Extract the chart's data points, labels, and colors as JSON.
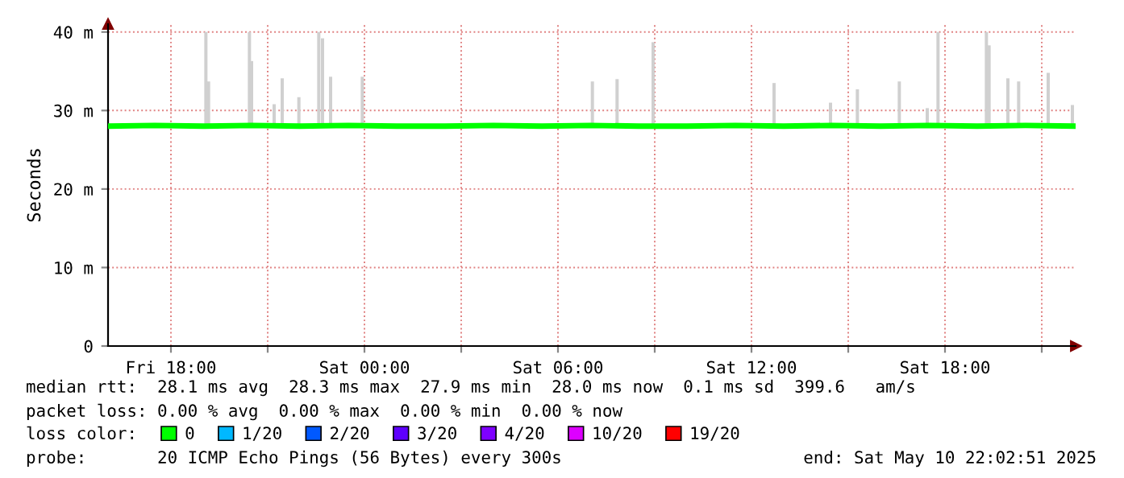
{
  "chart_data": {
    "type": "line",
    "ylabel": "Seconds",
    "xlim": [
      "2025-05-09T16:03",
      "2025-05-10T22:03"
    ],
    "xticks": [
      {
        "value": "2025-05-09T18:00",
        "label": "Fri 18:00"
      },
      {
        "value": "2025-05-09T21:00",
        "label": null
      },
      {
        "value": "2025-05-10T00:00",
        "label": "Sat 00:00"
      },
      {
        "value": "2025-05-10T03:00",
        "label": null
      },
      {
        "value": "2025-05-10T06:00",
        "label": "Sat 06:00"
      },
      {
        "value": "2025-05-10T09:00",
        "label": null
      },
      {
        "value": "2025-05-10T12:00",
        "label": "Sat 12:00"
      },
      {
        "value": "2025-05-10T15:00",
        "label": null
      },
      {
        "value": "2025-05-10T18:00",
        "label": "Sat 18:00"
      },
      {
        "value": "2025-05-10T21:00",
        "label": null
      }
    ],
    "ylim": [
      0,
      41
    ],
    "yticks": [
      0,
      {
        "value": 10,
        "label": "10 m"
      },
      {
        "value": 20,
        "label": "20 m"
      },
      {
        "value": 30,
        "label": "30 m"
      },
      {
        "value": 40,
        "label": "40 m"
      }
    ],
    "grid": true,
    "legend": "bottom",
    "legend_title": "loss color:",
    "series": [
      {
        "type": "bar",
        "color": "#d0d0d0",
        "x": [
          "2025-05-09T19:05",
          "2025-05-09T19:10",
          "2025-05-09T20:26",
          "2025-05-09T20:30",
          "2025-05-09T21:12",
          "2025-05-09T21:27",
          "2025-05-09T21:58",
          "2025-05-09T22:35",
          "2025-05-09T22:42",
          "2025-05-09T22:57",
          "2025-05-09T23:56",
          "2025-05-10T07:04",
          "2025-05-10T07:50",
          "2025-05-10T08:57",
          "2025-05-10T12:42",
          "2025-05-10T14:27",
          "2025-05-10T15:17",
          "2025-05-10T16:35",
          "2025-05-10T17:27",
          "2025-05-10T17:47",
          "2025-05-10T19:17",
          "2025-05-10T19:22",
          "2025-05-10T19:57",
          "2025-05-10T20:17",
          "2025-05-10T21:12",
          "2025-05-10T21:57"
        ],
        "base": [
          28,
          28,
          28,
          28,
          28,
          28,
          28,
          28,
          28,
          28,
          28,
          28,
          28,
          28,
          28,
          28,
          28,
          28,
          28,
          28,
          28,
          28,
          28,
          28,
          28,
          28
        ],
        "values": [
          12,
          5.7,
          12,
          8.3,
          2.8,
          6.1,
          3.7,
          12,
          11.2,
          6.3,
          6.3,
          5.7,
          6,
          10.7,
          5.5,
          3,
          4.7,
          5.7,
          2.3,
          12,
          12,
          10.3,
          6.1,
          5.7,
          6.8,
          2.7
        ]
      },
      {
        "name": "0",
        "color": "#00ff00",
        "x": [
          "2025-05-09T16:03",
          "2025-05-09T17:30",
          "2025-05-09T19:00",
          "2025-05-09T20:30",
          "2025-05-09T22:00",
          "2025-05-09T23:30",
          "2025-05-10T01:00",
          "2025-05-10T02:30",
          "2025-05-10T04:00",
          "2025-05-10T05:30",
          "2025-05-10T07:00",
          "2025-05-10T08:30",
          "2025-05-10T10:00",
          "2025-05-10T11:30",
          "2025-05-10T13:00",
          "2025-05-10T14:30",
          "2025-05-10T16:00",
          "2025-05-10T17:30",
          "2025-05-10T19:00",
          "2025-05-10T20:30",
          "2025-05-10T22:03"
        ],
        "values": [
          28,
          28.1,
          28,
          28.1,
          28,
          28.1,
          28,
          28,
          28.1,
          28,
          28.1,
          28,
          28,
          28.1,
          28,
          28.1,
          28,
          28.1,
          28,
          28.1,
          28
        ]
      },
      {
        "name": "1/20",
        "color": "#00b8ff"
      },
      {
        "name": "2/20",
        "color": "#0059ff"
      },
      {
        "name": "3/20",
        "color": "#5e00ff"
      },
      {
        "name": "4/20",
        "color": "#7e00ff"
      },
      {
        "name": "10/20",
        "color": "#dd00ff"
      },
      {
        "name": "19/20",
        "color": "#ff0000"
      }
    ],
    "annotations": [
      "median rtt:  28.1 ms avg  28.3 ms max  27.9 ms min  28.0 ms now  0.1 ms sd  399.6   am/s",
      "packet loss: 0.00 % avg  0.00 % max  0.00 % min  0.00 % now",
      "probe:       20 ICMP Echo Pings (56 Bytes) every 300s",
      "end: Sat May 10 22:02:51 2025"
    ]
  }
}
